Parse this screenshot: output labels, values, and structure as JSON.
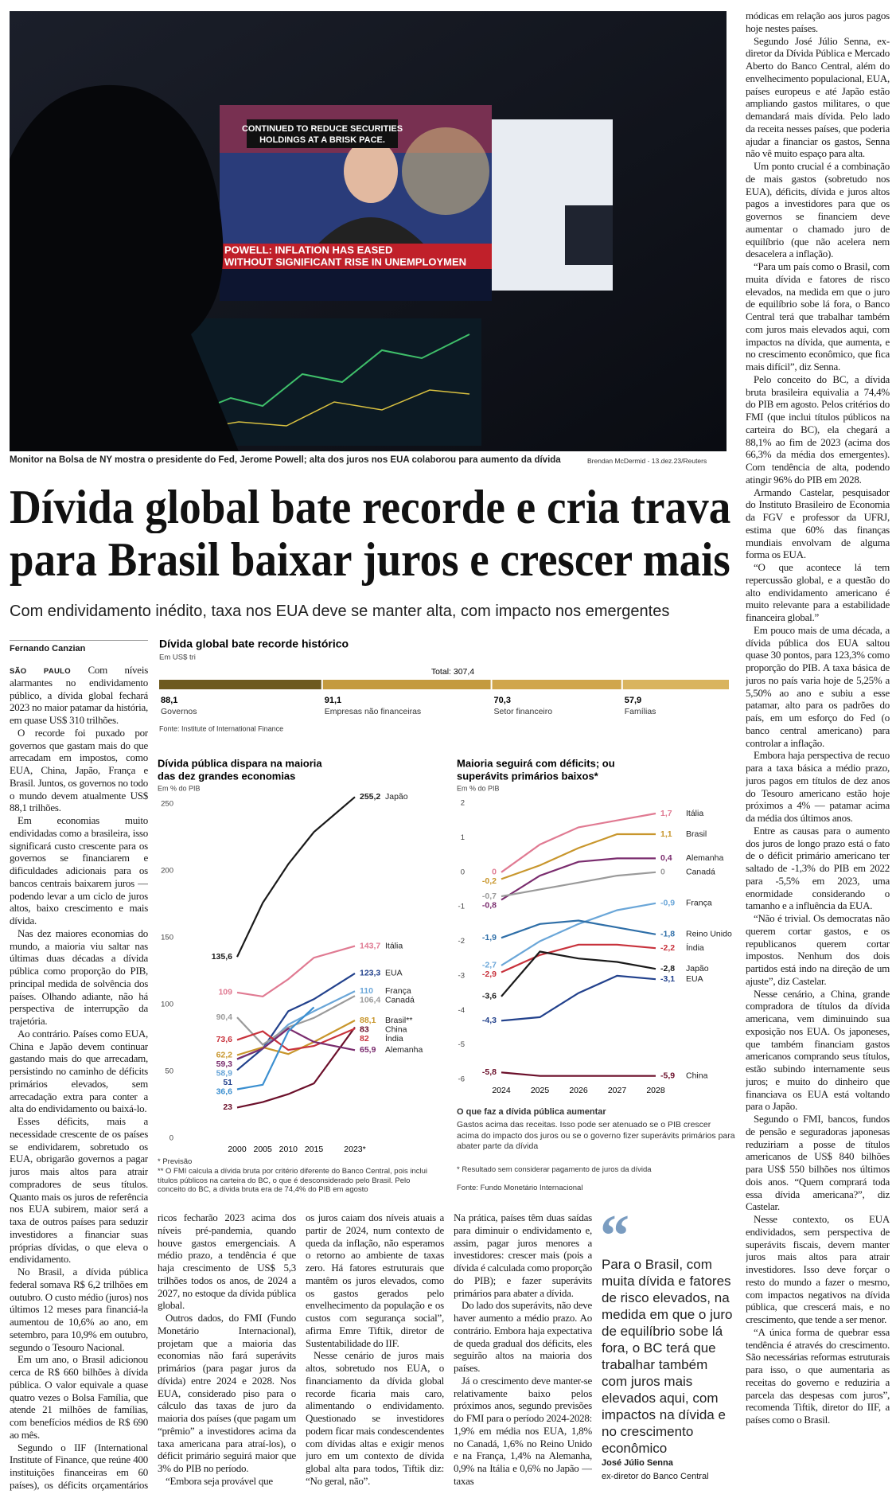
{
  "photo": {
    "screen_text": [
      "CONTINUED TO REDUCE SECURITIES",
      "HOLDINGS AT A BRISK PACE.",
      "POWELL: INFLATION HAS EASED",
      "WITHOUT SIGNIFICANT RISE IN UNEMPLOYMEN"
    ],
    "caption": "Monitor na Bolsa de NY mostra o presidente do Fed, Jerome Powell; alta dos juros nos EUA colaborou para aumento da dívida",
    "credit": "Brendan McDermid - 13.dez.23/Reuters"
  },
  "headline": [
    "Dívida global bate recorde e cria trava",
    "para Brasil baixar juros e crescer mais"
  ],
  "subheadline": "Com endividamento inédito, taxa nos EUA deve se manter alta, com impacto nos emergentes",
  "byline": "Fernando Canzian",
  "dateline": "SÃO PAULO",
  "columns": {
    "left": [
      "Com níveis alarmantes no endividamento público, a dívida global fechará 2023 no maior patamar da história, em quase US$ 310 trilhões.",
      "O recorde foi puxado por governos que gastam mais do que arrecadam em impostos, como EUA, China, Japão, França e Brasil. Juntos, os governos no todo o mundo devem atualmente US$ 88,1 trilhões.",
      "Em economias muito endividadas como a brasileira, isso significará custo crescente para os governos se financiarem e dificuldades adicionais para os bancos centrais baixarem juros — podendo levar a um ciclo de juros altos, baixo crescimento e mais dívida.",
      "Nas dez maiores economias do mundo, a maioria viu saltar nas últimas duas décadas a dívida pública como proporção do PIB, principal medida de solvência dos países. Olhando adiante, não há perspectiva de interrupção da trajetória.",
      "Ao contrário. Países como EUA, China e Japão devem continuar gastando mais do que arrecadam, persistindo no caminho de déficits primários elevados, sem arrecadação extra para conter a alta do endividamento ou baixá-lo.",
      "Esses déficits, mais a necessidade crescente de os países se endividarem, sobretudo os EUA, obrigarão governos a pagar juros mais altos para atrair compradores de seus títulos. Quanto mais os juros de referência nos EUA subirem, maior será a taxa de outros países para seduzir investidores a financiar suas próprias dívidas, o que eleva o endividamento.",
      "No Brasil, a dívida pública federal somava R$ 6,2 trilhões em outubro. O custo médio (juros) nos últimos 12 meses para financiá-la aumentou de 10,6% ao ano, em setembro, para 10,9% em outubro, segundo o Tesouro Nacional.",
      "Em um ano, o Brasil adicionou cerca de R$ 660 bilhões à dívida pública. O valor equivale a quase quatro vezes o Bolsa Família, que atende 21 milhões de famílias, com benefícios médios de R$ 690 ao mês.",
      "Segundo o IIF (International Institute of Finance, que reúne 400 instituições financeiras em 60 países), os déficits orçamentários dos países"
    ],
    "bottom": [
      [
        "ricos fecharão 2023 acima dos níveis pré-pandemia, quando houve gastos emergenciais. A médio prazo, a tendência é que haja crescimento de US$ 5,3 trilhões todos os anos, de 2024 a 2027, no estoque da dívida pública global.",
        "Outros dados, do FMI (Fundo Monetário Internacional), projetam que a maioria das economias não fará superávits primários (para pagar juros da dívida) entre 2024 e 2028. Nos EUA, considerado piso para o cálculo das taxas de juro da maioria dos países (que pagam um “prêmio” a investidores acima da taxa americana para atraí-los), o déficit primário seguirá maior que 3% do PIB no período.",
        "“Embora seja provável que"
      ],
      [
        "os juros caiam dos níveis atuais a partir de 2024, num contexto de queda da inflação, não esperamos o retorno ao ambiente de taxas zero. Há fatores estruturais que mantêm os juros elevados, como os gastos gerados pelo envelhecimento da população e os custos com segurança social”, afirma Emre Tiftik, diretor de Sustentabilidade do IIF.",
        "Nesse cenário de juros mais altos, sobretudo nos EUA, o financiamento da dívida global recorde ficaria mais caro, alimentando o endividamento. Questionado se investidores podem ficar mais condescendentes com dívidas altas e exigir menos juro em um contexto de dívida global alta para todos, Tiftik diz: “No geral, não”."
      ],
      [
        "Na prática, países têm duas saídas para diminuir o endividamento e, assim, pagar juros menores a investidores: crescer mais (pois a dívida é calculada como proporção do PIB); e fazer superávits primários para abater a dívida.",
        "Do lado dos superávits, não deve haver aumento a médio prazo. Ao contrário. Embora haja expectativa de queda gradual dos déficits, eles seguirão altos na maioria dos países.",
        "Já o crescimento deve manter-se relativamente baixo pelos próximos anos, segundo previsões do FMI para o período 2024-2028: 1,9% em média nos EUA, 1,8% no Canadá, 1,6% no Reino Unido e na França, 1,4% na Alemanha, 0,9% na Itália e 0,6% no Japão — taxas"
      ]
    ],
    "right": [
      "módicas em relação aos juros pagos hoje nestes países.",
      "Segundo José Júlio Senna, ex-diretor da Dívida Pública e Mercado Aberto do Banco Central, além do envelhecimento populacional, EUA, países europeus e até Japão estão ampliando gastos militares, o que demandará mais dívida. Pelo lado da receita nesses países, que poderia ajudar a financiar os gastos, Senna não vê muito espaço para alta.",
      "Um ponto crucial é a combinação de mais gastos (sobretudo nos EUA), déficits, dívida e juros altos pagos a investidores para que os governos se financiem deve aumentar o chamado juro de equilíbrio (que não acelera nem desacelera a inflação).",
      "“Para um país como o Brasil, com muita dívida e fatores de risco elevados, na medida em que o juro de equilíbrio sobe lá fora, o Banco Central terá que trabalhar também com juros mais elevados aqui, com impactos na dívida, que aumenta, e no crescimento econômico, que fica mais difícil”, diz Senna.",
      "Pelo conceito do BC, a dívida bruta brasileira equivalia a 74,4% do PIB em agosto. Pelos critérios do FMI (que inclui títulos públicos na carteira do BC), ela chegará a 88,1% ao fim de 2023 (acima dos 66,3% da média dos emergentes). Com tendência de alta, podendo atingir 96% do PIB em 2028.",
      "Armando Castelar, pesquisador do Instituto Brasileiro de Economia da FGV e professor da UFRJ, estima que 60% das finanças mundiais envolvam de alguma forma os EUA.",
      "“O que acontece lá tem repercussão global, e a questão do alto endividamento americano é muito relevante para a estabilidade financeira global.”",
      "Em pouco mais de uma década, a dívida pública dos EUA saltou quase 30 pontos, para 123,3% como proporção do PIB. A taxa básica de juros no país varia hoje de 5,25% a 5,50% ao ano e subiu a esse patamar, alto para os padrões do país, em um esforço do Fed (o banco central americano) para controlar a inflação.",
      "Embora haja perspectiva de recuo para a taxa básica a médio prazo, juros pagos em títulos de dez anos do Tesouro americano estão hoje próximos a 4% — patamar acima da média dos últimos anos.",
      "Entre as causas para o aumento dos juros de longo prazo está o fato de o déficit primário americano ter saltado de -1,3% do PIB em 2022 para -5,5% em 2023, uma enormidade considerando o tamanho e a influência da EUA.",
      "“Não é trivial. Os democratas não querem cortar gastos, e os republicanos querem cortar impostos. Nenhum dos dois partidos está indo na direção de um ajuste”, diz Castelar.",
      "Nesse cenário, a China, grande compradora de títulos da dívida americana, vem diminuindo sua exposição nos EUA. Os japoneses, que também financiam gastos americanos comprando seus títulos, estão subindo internamente seus juros; e muito do dinheiro que financiava os EUA está voltando para o Japão.",
      "Segundo o FMI, bancos, fundos de pensão e seguradoras japonesas reduziriam a posse de títulos americanos de US$ 840 bilhões para US$ 550 bilhões nos últimos dois anos. “Quem comprará toda essa dívida americana?”, diz Castelar.",
      "Nesse contexto, os EUA endividados, sem perspectiva de superávits fiscais, devem manter juros mais altos para atrair investidores. Isso deve forçar o resto do mundo a fazer o mesmo, com impactos negativos na dívida pública, que crescerá mais, e no crescimento, que tende a ser menor.",
      "“A única forma de quebrar essa tendência é através do crescimento. São necessárias reformas estruturais para isso, o que aumentaria as receitas do governo e reduziria a parcela das despesas com juros”, recomenda Tiftik, diretor do IIF, a países como o Brasil."
    ]
  },
  "quote": {
    "text": "Para o Brasil, com muita dívida e fatores de risco elevados, na medida em que o juro de equilíbrio sobe lá fora, o BC terá que trabalhar também com juros mais elevados aqui, com impactos na dívida e no crescimento econômico",
    "author": "José Júlio Senna",
    "role": "ex-diretor do Banco Central"
  },
  "chart_data": [
    {
      "type": "stacked_bar",
      "title": "Dívida global bate recorde histórico",
      "unit": "Em US$ tri",
      "total": 307.4,
      "total_label": "Total: 307,4",
      "categories": [
        "Governos",
        "Empresas não financeiras",
        "Setor financeiro",
        "Famílias"
      ],
      "values": [
        88.1,
        91.1,
        70.3,
        57.9
      ],
      "value_labels": [
        "88,1",
        "91,1",
        "70,3",
        "57,9"
      ],
      "colors": [
        "#6e5a1f",
        "#c49a3e",
        "#d0a64c",
        "#d9b45e"
      ],
      "source": "Fonte: Institute of International Finance"
    },
    {
      "type": "line",
      "title": [
        "Dívida pública dispara na maioria",
        "das dez grandes economias"
      ],
      "unit": "Em % do PIB",
      "x": [
        2000,
        2005,
        2010,
        2015,
        2023
      ],
      "xticks": [
        2000,
        2005,
        2010,
        2015,
        {
          "value": 2023,
          "label": "2023*"
        }
      ],
      "ylim": [
        0,
        250
      ],
      "yticks": [
        0,
        50,
        100,
        150,
        200,
        250
      ],
      "series": [
        {
          "name": "Japão",
          "color": "#1a1a1a",
          "values": [
            135.6,
            176,
            205,
            229,
            255.2
          ],
          "start_label": "135,6",
          "end_label": "255,2"
        },
        {
          "name": "Itália",
          "color": "#e07a92",
          "values": [
            109,
            106,
            119,
            135,
            143.7
          ],
          "start_label": "109",
          "end_label": "143,7"
        },
        {
          "name": "EUA",
          "color": "#22418c",
          "values": [
            51,
            67,
            95,
            104,
            123.3
          ],
          "start_label": "51",
          "end_label": "123,3"
        },
        {
          "name": "França",
          "color": "#6aa6d8",
          "values": [
            58.9,
            67,
            85,
            95,
            110
          ],
          "start_label": "58,9",
          "end_label": "110"
        },
        {
          "name": "Canadá",
          "color": "#9a9a9a",
          "values": [
            90.4,
            70,
            83,
            90,
            106.4
          ],
          "start_label": "90,4",
          "end_label": "106,4"
        },
        {
          "name": "Brasil**",
          "color": "#c8962c",
          "values": [
            62.2,
            68,
            63,
            72,
            88.1
          ],
          "start_label": "62,2",
          "end_label": "88,1"
        },
        {
          "name": "China",
          "color": "#6b0f2a",
          "values": [
            23,
            27,
            33,
            41,
            83
          ],
          "start_label": "23",
          "end_label": "83"
        },
        {
          "name": "Índia",
          "color": "#c8323c",
          "values": [
            73.6,
            80,
            66,
            69,
            82
          ],
          "start_label": "73,6",
          "end_label": "82"
        },
        {
          "name": "Alemanha",
          "color": "#7a2c6e",
          "values": [
            59.3,
            67,
            82,
            72,
            65.9
          ],
          "start_label": "59,3",
          "end_label": "65,9"
        },
        {
          "color": "#3b8fd0",
          "values": [
            36.6,
            40,
            80,
            98,
            null
          ],
          "start_label": "36,6"
        }
      ],
      "notes": [
        "* Previsão",
        "** O FMI calcula a dívida bruta por critério diferente do Banco Central, pois inclui títulos públicos na carteira do BC, o que é desconsiderado pelo Brasil. Pelo conceito do BC, a dívida bruta era de 74,4% do PIB em agosto"
      ]
    },
    {
      "type": "line",
      "title": [
        "Maioria seguirá com déficits; ou",
        "superávits primários baixos*"
      ],
      "unit": "Em % do PIB",
      "x": [
        2024,
        2025,
        2026,
        2027,
        2028
      ],
      "xticks": [
        2024,
        2025,
        2026,
        2027,
        2028
      ],
      "ylim": [
        -6,
        2
      ],
      "yticks": [
        -6,
        -5,
        -4,
        -3,
        -2,
        -1,
        0,
        1,
        2
      ],
      "series": [
        {
          "name": "Itália",
          "color": "#e07a92",
          "values": [
            0,
            0.8,
            1.3,
            1.5,
            1.7
          ],
          "start_label": "0",
          "end_label": "1,7"
        },
        {
          "name": "Brasil",
          "color": "#c8962c",
          "values": [
            -0.2,
            0.2,
            0.7,
            1.1,
            1.1
          ],
          "start_label": "-0,2",
          "end_label": "1,1"
        },
        {
          "name": "Alemanha",
          "color": "#7a2c6e",
          "values": [
            -0.8,
            -0.1,
            0.3,
            0.4,
            0.4
          ],
          "start_label": "-0,8",
          "end_label": "0,4"
        },
        {
          "name": "Canadá",
          "color": "#9a9a9a",
          "values": [
            -0.7,
            -0.5,
            -0.3,
            -0.1,
            0
          ],
          "start_label": "-0,7",
          "end_label": "0"
        },
        {
          "name": "França",
          "color": "#6aa6d8",
          "values": [
            -2.7,
            -2.0,
            -1.5,
            -1.1,
            -0.9
          ],
          "start_label": "-2,7",
          "end_label": "-0,9"
        },
        {
          "name": "Reino Unido",
          "color": "#2f6fa8",
          "values": [
            -1.9,
            -1.5,
            -1.4,
            -1.6,
            -1.8
          ],
          "start_label": "-1,9",
          "end_label": "-1,8"
        },
        {
          "name": "Índia",
          "color": "#c8323c",
          "values": [
            -2.9,
            -2.4,
            -2.1,
            -2.1,
            -2.2
          ],
          "start_label": "-2,9",
          "end_label": "-2,2"
        },
        {
          "name": "Japão",
          "color": "#1a1a1a",
          "values": [
            -3.6,
            -2.3,
            -2.5,
            -2.6,
            -2.8
          ],
          "start_label": "-3,6",
          "end_label": "-2,8"
        },
        {
          "name": "EUA",
          "color": "#22418c",
          "values": [
            -4.3,
            -4.2,
            -3.5,
            -3.0,
            -3.1
          ],
          "start_label": "-4,3",
          "end_label": "-3,1"
        },
        {
          "name": "China",
          "color": "#6b0f2a",
          "values": [
            -5.8,
            -5.9,
            -5.9,
            -5.9,
            -5.9
          ],
          "start_label": "-5,8",
          "end_label": "-5,9"
        }
      ],
      "explainer_title": "O que faz a dívida pública aumentar",
      "explainer_text": "Gastos acima das receitas. Isso pode ser atenuado se o PIB crescer acima do impacto dos juros ou se o governo fizer superávits primários para abater parte da dívida",
      "notes": [
        "* Resultado sem considerar pagamento de juros da dívida"
      ],
      "source": "Fonte: Fundo Monetário Internacional"
    }
  ]
}
